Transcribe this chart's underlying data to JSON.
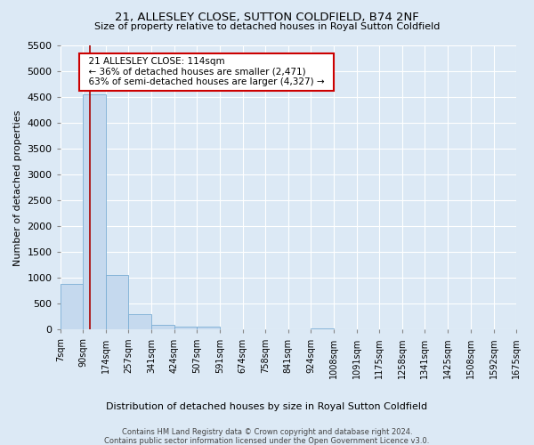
{
  "title_line1": "21, ALLESLEY CLOSE, SUTTON COLDFIELD, B74 2NF",
  "title_line2": "Size of property relative to detached houses in Royal Sutton Coldfield",
  "xlabel": "Distribution of detached houses by size in Royal Sutton Coldfield",
  "ylabel": "Number of detached properties",
  "footnote1": "Contains HM Land Registry data © Crown copyright and database right 2024.",
  "footnote2": "Contains public sector information licensed under the Open Government Licence v3.0.",
  "annotation_title": "21 ALLESLEY CLOSE: 114sqm",
  "annotation_line1": "← 36% of detached houses are smaller (2,471)",
  "annotation_line2": "63% of semi-detached houses are larger (4,327) →",
  "property_size": 114,
  "bar_color": "#c5d9ee",
  "bar_edge_color": "#7aadd4",
  "marker_color": "#aa0000",
  "bg_color": "#dce9f5",
  "grid_color": "#ffffff",
  "annotation_box_color": "#ffffff",
  "annotation_border_color": "#cc0000",
  "ylim": [
    0,
    5500
  ],
  "yticks": [
    0,
    500,
    1000,
    1500,
    2000,
    2500,
    3000,
    3500,
    4000,
    4500,
    5000,
    5500
  ],
  "bins": [
    7,
    90,
    174,
    257,
    341,
    424,
    507,
    591,
    674,
    758,
    841,
    924,
    1008,
    1091,
    1175,
    1258,
    1341,
    1425,
    1508,
    1592,
    1675
  ],
  "bin_labels": [
    "7sqm",
    "90sqm",
    "174sqm",
    "257sqm",
    "341sqm",
    "424sqm",
    "507sqm",
    "591sqm",
    "674sqm",
    "758sqm",
    "841sqm",
    "924sqm",
    "1008sqm",
    "1091sqm",
    "1175sqm",
    "1258sqm",
    "1341sqm",
    "1425sqm",
    "1508sqm",
    "1592sqm",
    "1675sqm"
  ],
  "counts": [
    880,
    4560,
    1060,
    305,
    95,
    65,
    55,
    0,
    0,
    0,
    0,
    30,
    0,
    0,
    0,
    0,
    0,
    0,
    0,
    0
  ]
}
